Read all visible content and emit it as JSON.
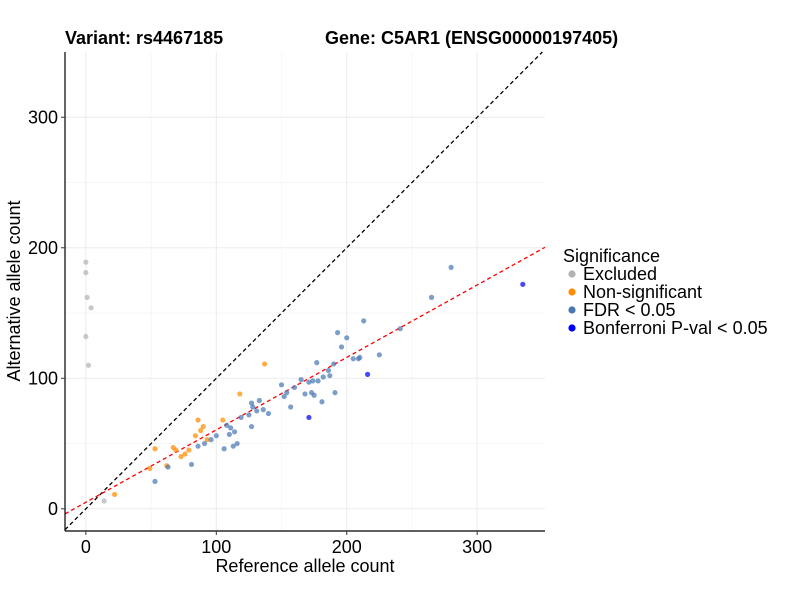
{
  "chart_data": {
    "type": "scatter",
    "title_left": "Variant: rs4467185",
    "title_right": "Gene: C5AR1 (ENSG00000197405)",
    "xlabel": "Reference allele count",
    "ylabel": "Alternative allele count",
    "xlim": [
      -16,
      352
    ],
    "ylim": [
      -17,
      350
    ],
    "xticks": [
      0,
      100,
      200,
      300
    ],
    "yticks": [
      0,
      100,
      200,
      300
    ],
    "grid": true,
    "reference_lines": [
      {
        "name": "identity",
        "slope": 1,
        "intercept": 0,
        "color": "#000000",
        "style": "dashed"
      },
      {
        "name": "fit",
        "slope": 0.555,
        "intercept": 5,
        "color": "#ff0000",
        "style": "dashed"
      }
    ],
    "legend": {
      "title": "Significance",
      "position": "right",
      "entries": [
        {
          "label": "Excluded",
          "color": "#b3b3b3"
        },
        {
          "label": "Non-significant",
          "color": "#ff8c00"
        },
        {
          "label": "FDR < 0.05",
          "color": "#4a78b5"
        },
        {
          "label": "Bonferroni P-val < 0.05",
          "color": "#0000ff"
        }
      ]
    },
    "series": [
      {
        "name": "Excluded",
        "color": "#b3b3b3",
        "points": [
          [
            0,
            189
          ],
          [
            0,
            181
          ],
          [
            1,
            162
          ],
          [
            4,
            154
          ],
          [
            0,
            132
          ],
          [
            2,
            110
          ],
          [
            14,
            6
          ]
        ]
      },
      {
        "name": "Non-significant",
        "color": "#ff8c00",
        "points": [
          [
            22,
            11
          ],
          [
            49,
            31
          ],
          [
            53,
            46
          ],
          [
            62,
            33
          ],
          [
            67,
            47
          ],
          [
            69,
            45
          ],
          [
            73,
            40
          ],
          [
            76,
            42
          ],
          [
            79,
            45
          ],
          [
            84,
            56
          ],
          [
            86,
            68
          ],
          [
            88,
            60
          ],
          [
            90,
            63
          ],
          [
            93,
            53
          ],
          [
            105,
            68
          ],
          [
            118,
            88
          ],
          [
            137,
            111
          ]
        ]
      },
      {
        "name": "FDR < 0.05",
        "color": "#4a78b5",
        "points": [
          [
            53,
            21
          ],
          [
            63,
            32
          ],
          [
            81,
            34
          ],
          [
            86,
            48
          ],
          [
            91,
            50
          ],
          [
            96,
            53
          ],
          [
            100,
            56
          ],
          [
            106,
            46
          ],
          [
            108,
            64
          ],
          [
            110,
            57
          ],
          [
            111,
            62
          ],
          [
            113,
            48
          ],
          [
            114,
            59
          ],
          [
            116,
            50
          ],
          [
            119,
            70
          ],
          [
            125,
            72
          ],
          [
            127,
            81
          ],
          [
            128,
            78
          ],
          [
            127,
            63
          ],
          [
            131,
            75
          ],
          [
            133,
            83
          ],
          [
            136,
            76
          ],
          [
            140,
            73
          ],
          [
            150,
            95
          ],
          [
            152,
            86
          ],
          [
            154,
            89
          ],
          [
            157,
            78
          ],
          [
            160,
            93
          ],
          [
            165,
            99
          ],
          [
            168,
            88
          ],
          [
            171,
            97
          ],
          [
            173,
            89
          ],
          [
            174,
            98
          ],
          [
            175,
            87
          ],
          [
            177,
            112
          ],
          [
            178,
            98
          ],
          [
            181,
            82
          ],
          [
            182,
            101
          ],
          [
            186,
            106
          ],
          [
            187,
            102
          ],
          [
            190,
            111
          ],
          [
            191,
            89
          ],
          [
            193,
            135
          ],
          [
            196,
            124
          ],
          [
            200,
            131
          ],
          [
            205,
            115
          ],
          [
            209,
            115
          ],
          [
            210,
            116
          ],
          [
            213,
            144
          ],
          [
            225,
            118
          ],
          [
            241,
            138
          ],
          [
            265,
            162
          ],
          [
            280,
            185
          ]
        ]
      },
      {
        "name": "Bonferroni P-val < 0.05",
        "color": "#0000ff",
        "points": [
          [
            171,
            70
          ],
          [
            216,
            103
          ],
          [
            335,
            172
          ]
        ]
      }
    ]
  }
}
